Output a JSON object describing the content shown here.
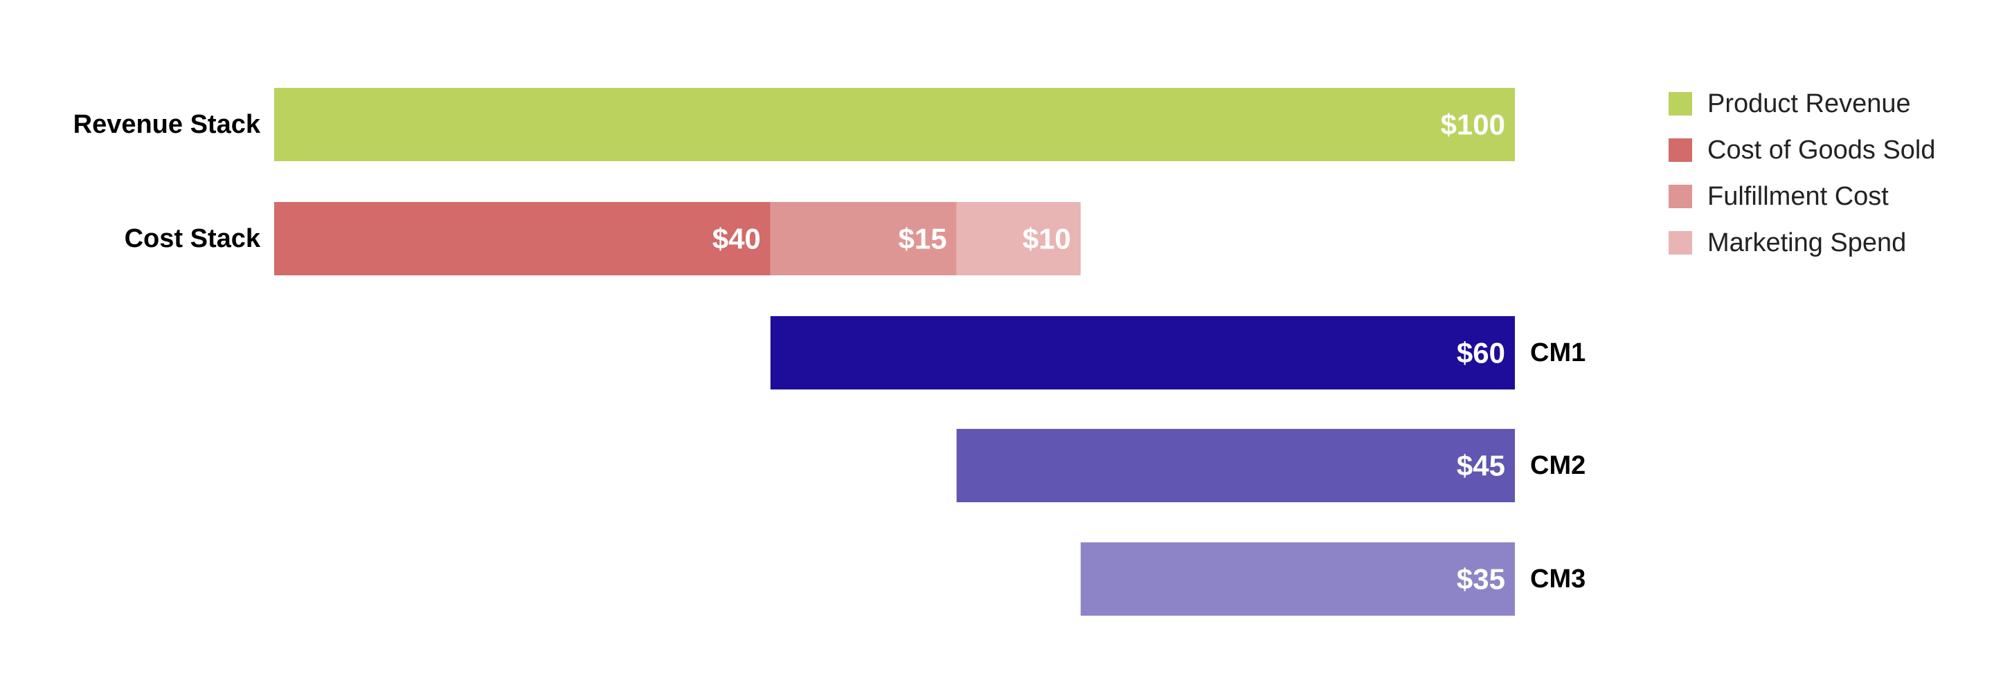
{
  "chart_data": {
    "type": "bar",
    "orientation": "horizontal",
    "value_prefix": "$",
    "xlim": [
      0,
      100
    ],
    "grid": false,
    "legend_position": "top-right",
    "title": "",
    "xlabel": "",
    "ylabel": "",
    "rows": [
      {
        "label": "Revenue Stack",
        "label_side": "left",
        "segments": [
          {
            "series": "Product Revenue",
            "start": 0,
            "value": 100,
            "text": "$100"
          }
        ]
      },
      {
        "label": "Cost Stack",
        "label_side": "left",
        "segments": [
          {
            "series": "Cost of Goods Sold",
            "start": 0,
            "value": 40,
            "text": "$40"
          },
          {
            "series": "Fulfillment Cost",
            "start": 40,
            "value": 15,
            "text": "$15"
          },
          {
            "series": "Marketing Spend",
            "start": 55,
            "value": 10,
            "text": "$10"
          }
        ]
      },
      {
        "label": "CM1",
        "label_side": "right",
        "segments": [
          {
            "series": "CM1",
            "start": 40,
            "value": 60,
            "text": "$60"
          }
        ]
      },
      {
        "label": "CM2",
        "label_side": "right",
        "segments": [
          {
            "series": "CM2",
            "start": 55,
            "value": 45,
            "text": "$45"
          }
        ]
      },
      {
        "label": "CM3",
        "label_side": "right",
        "segments": [
          {
            "series": "CM3",
            "start": 65,
            "value": 35,
            "text": "$35"
          }
        ]
      }
    ],
    "legend": [
      {
        "name": "Product Revenue",
        "color": "#bbd25f"
      },
      {
        "name": "Cost of Goods Sold",
        "color": "#d26b6a"
      },
      {
        "name": "Fulfillment Cost",
        "color": "#de9694"
      },
      {
        "name": "Marketing Spend",
        "color": "#e8b5b4"
      }
    ],
    "colors": {
      "Product Revenue": "#bbd25f",
      "Cost of Goods Sold": "#d26b6a",
      "Fulfillment Cost": "#de9694",
      "Marketing Spend": "#e8b5b4",
      "CM1": "#1e0c9a",
      "CM2": "#6156b2",
      "CM3": "#8d84c8"
    }
  }
}
